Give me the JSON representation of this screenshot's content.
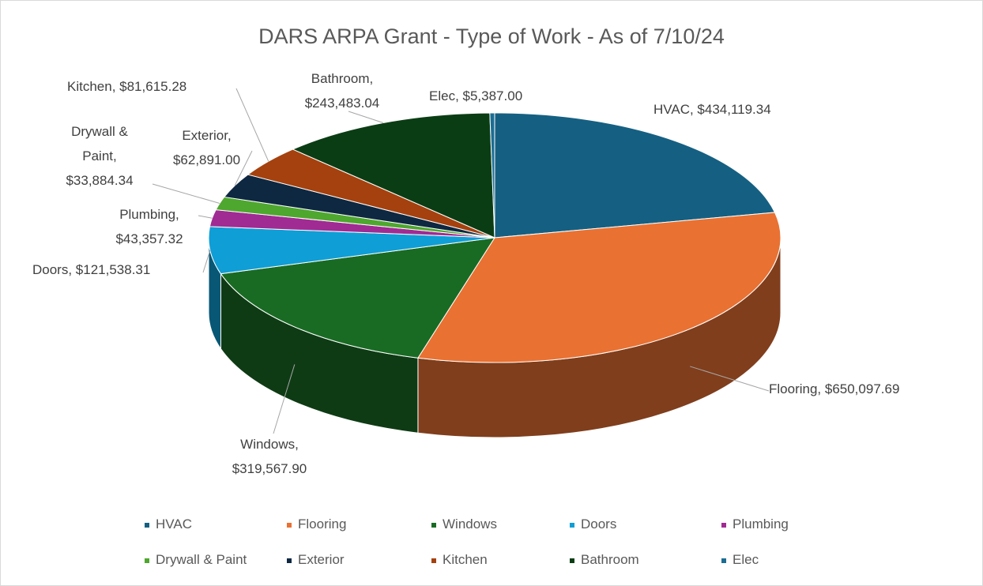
{
  "chart_data": {
    "type": "pie3d",
    "title": "DARS ARPA Grant - Type of Work - As of 7/10/24",
    "categories": [
      "HVAC",
      "Flooring",
      "Windows",
      "Doors",
      "Plumbing",
      "Drywall & Paint",
      "Exterior",
      "Kitchen",
      "Bathroom",
      "Elec"
    ],
    "values": [
      434119.34,
      650097.69,
      319567.9,
      121538.31,
      43357.32,
      33884.34,
      62891.0,
      81615.28,
      243483.04,
      5387.0
    ],
    "value_labels": [
      "HVAC, $434,119.34",
      "Flooring, $650,097.69",
      "Windows, $319,567.90",
      "Doors, $121,538.31",
      "Plumbing, $43,357.32",
      "Drywall & Paint, $33,884.34",
      "Exterior, $62,891.00",
      "Kitchen, $81,615.28",
      "Bathroom, $243,483.04",
      "Elec, $5,387.00"
    ],
    "colors": [
      "#156082",
      "#e97132",
      "#196b24",
      "#0f9ed5",
      "#a02b93",
      "#4ea72e",
      "#0e2841",
      "#a5410e",
      "#0b3d14",
      "#1b6d93"
    ],
    "legend": "bottom"
  }
}
